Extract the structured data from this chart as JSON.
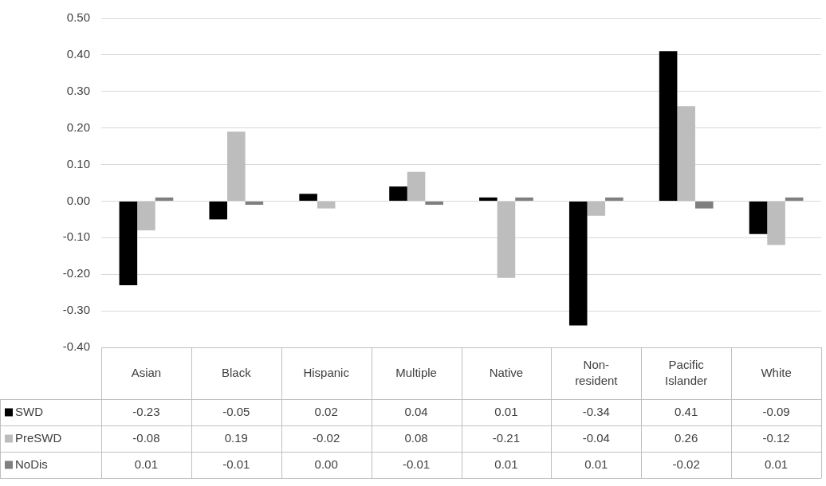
{
  "chart_data": {
    "type": "bar",
    "categories": [
      "Asian",
      "Black",
      "Hispanic",
      "Multiple",
      "Native",
      "Non-resident",
      "Pacific Islander",
      "White"
    ],
    "series": [
      {
        "name": "SWD",
        "color": "#000000",
        "values": [
          -0.23,
          -0.05,
          0.02,
          0.04,
          0.01,
          -0.34,
          0.41,
          -0.09
        ],
        "value_labels": [
          "-0.23",
          "-0.05",
          "0.02",
          "0.04",
          "0.01",
          "-0.34",
          "0.41",
          "-0.09"
        ]
      },
      {
        "name": "PreSWD",
        "color": "#bdbdbd",
        "values": [
          -0.08,
          0.19,
          -0.02,
          0.08,
          -0.21,
          -0.04,
          0.26,
          -0.12
        ],
        "value_labels": [
          "-0.08",
          "0.19",
          "-0.02",
          "0.08",
          "-0.21",
          "-0.04",
          "0.26",
          "-0.12"
        ]
      },
      {
        "name": "NoDis",
        "color": "#7f7f7f",
        "values": [
          0.01,
          -0.01,
          0.0,
          -0.01,
          0.01,
          0.01,
          -0.02,
          0.01
        ],
        "value_labels": [
          "0.01",
          "-0.01",
          "0.00",
          "-0.01",
          "0.01",
          "0.01",
          "-0.02",
          "0.01"
        ]
      }
    ],
    "ylim": [
      -0.4,
      0.5
    ],
    "yticks": [
      {
        "value": -0.4,
        "label": "-0.40"
      },
      {
        "value": -0.3,
        "label": "-0.30"
      },
      {
        "value": -0.2,
        "label": "-0.20"
      },
      {
        "value": -0.1,
        "label": "-0.10"
      },
      {
        "value": 0,
        "label": "0.00"
      },
      {
        "value": 0.1,
        "label": "0.10"
      },
      {
        "value": 0.2,
        "label": "0.20"
      },
      {
        "value": 0.3,
        "label": "0.30"
      },
      {
        "value": 0.4,
        "label": "0.40"
      },
      {
        "value": 0.5,
        "label": "0.50"
      }
    ],
    "grid": "y",
    "legend": "bottom"
  }
}
